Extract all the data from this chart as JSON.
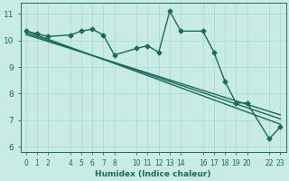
{
  "xlabel": "Humidex (Indice chaleur)",
  "background_color": "#c8ebe6",
  "grid_color": "#b0d8d2",
  "line_color": "#1a6b5a",
  "line_width": 1.0,
  "marker_size": 2.5,
  "xlim": [
    -0.5,
    23.5
  ],
  "ylim": [
    5.8,
    11.4
  ],
  "yticks": [
    6,
    7,
    8,
    9,
    10,
    11
  ],
  "xticks": [
    0,
    1,
    2,
    4,
    5,
    6,
    7,
    8,
    10,
    11,
    12,
    13,
    14,
    16,
    17,
    18,
    19,
    20,
    22,
    23
  ],
  "curve1_x": [
    0,
    1,
    2,
    4,
    5,
    6,
    7,
    8,
    10,
    11,
    12,
    13,
    14,
    16,
    17,
    18,
    19,
    20,
    22,
    23
  ],
  "curve1_y": [
    10.35,
    10.25,
    10.15,
    10.2,
    10.35,
    10.42,
    10.2,
    9.45,
    9.7,
    9.8,
    9.55,
    11.1,
    10.35,
    10.35,
    9.55,
    8.45,
    7.65,
    7.65,
    6.3,
    6.75
  ],
  "line1_x": [
    0,
    23
  ],
  "line1_y": [
    10.35,
    6.85
  ],
  "line2_x": [
    0,
    23
  ],
  "line2_y": [
    10.28,
    7.05
  ],
  "line3_x": [
    0,
    23
  ],
  "line3_y": [
    10.22,
    7.2
  ]
}
